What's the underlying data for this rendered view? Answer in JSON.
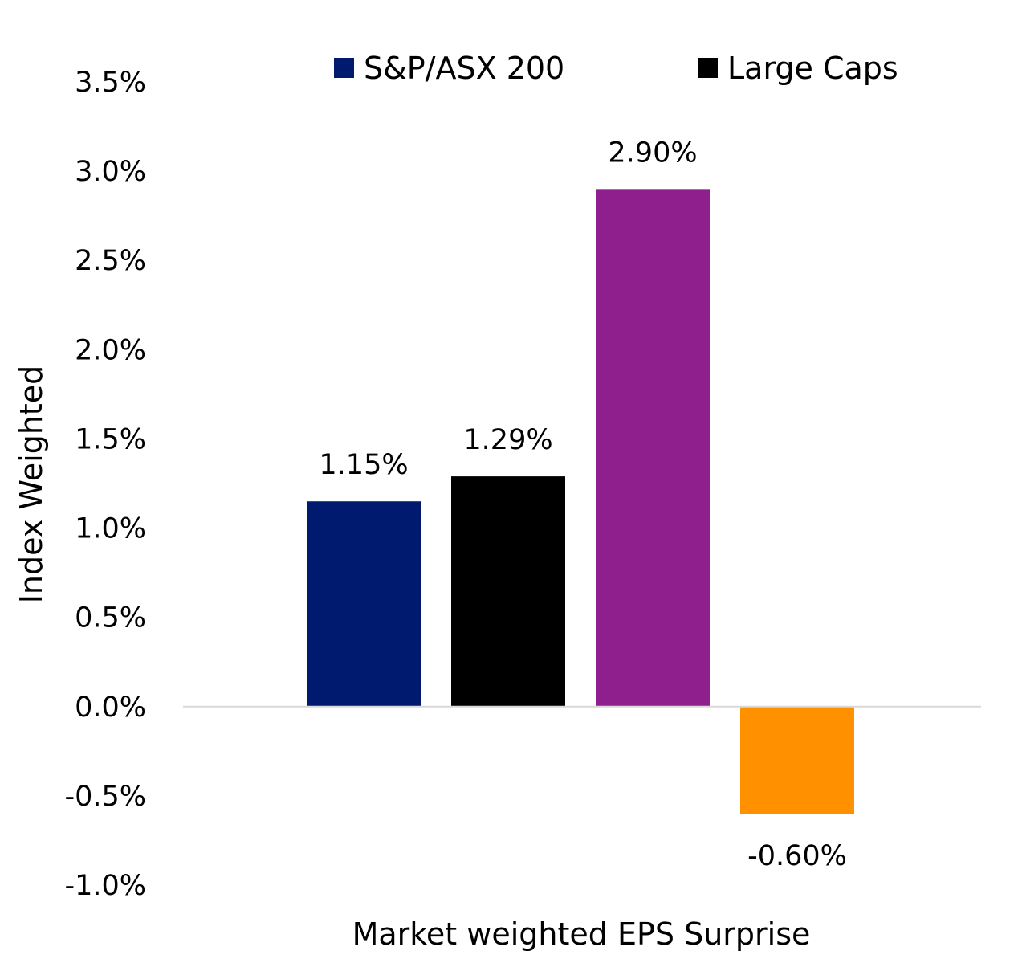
{
  "chart_data": {
    "type": "bar",
    "title": "",
    "xlabel": "Market weighted EPS Surprise",
    "ylabel": "Index Weighted",
    "ylim": [
      -1.0,
      3.5
    ],
    "ytick_step": 0.5,
    "y_tick_labels": [
      "-1.0%",
      "-0.5%",
      "0.0%",
      "0.5%",
      "1.0%",
      "1.5%",
      "2.0%",
      "2.5%",
      "3.0%",
      "3.5%"
    ],
    "grid": false,
    "legend_position": "top",
    "series": [
      {
        "name": "S&P/ASX 200",
        "value": 1.15,
        "label": "1.15%",
        "color": "#001A70",
        "in_legend": true
      },
      {
        "name": "Large Caps",
        "value": 1.29,
        "label": "1.29%",
        "color": "#000000",
        "in_legend": true
      },
      {
        "name": "",
        "value": 2.9,
        "label": "2.90%",
        "color": "#901F8E",
        "in_legend": false
      },
      {
        "name": "",
        "value": -0.6,
        "label": "-0.60%",
        "color": "#FF9100",
        "in_legend": false
      }
    ]
  }
}
